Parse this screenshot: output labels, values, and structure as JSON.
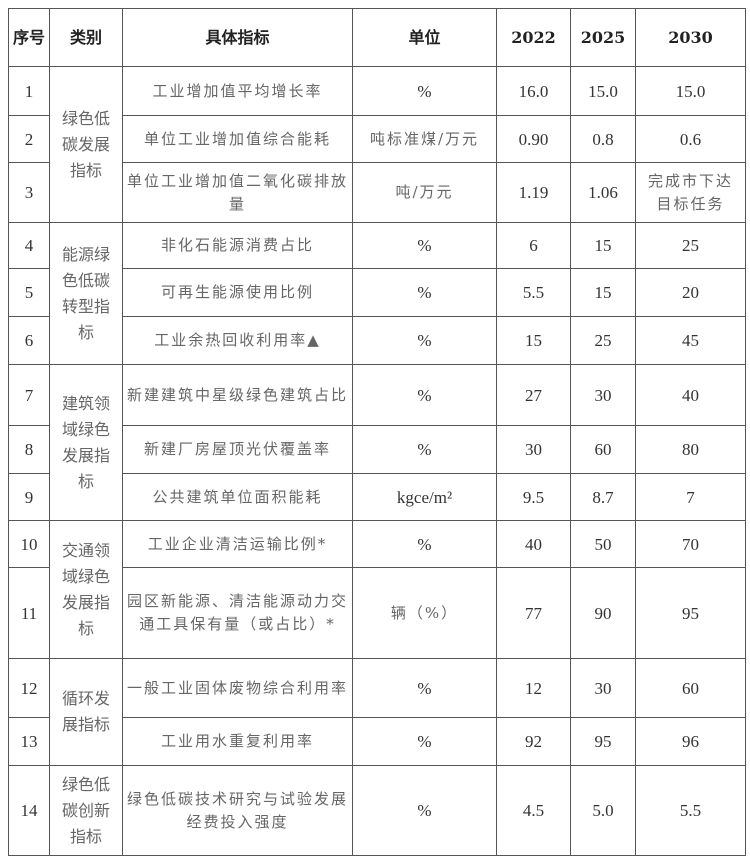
{
  "header": {
    "seq": "序号",
    "category": "类别",
    "indicator": "具体指标",
    "unit": "单位",
    "y2022": "2022",
    "y2025": "2025",
    "y2030": "2030"
  },
  "categories": [
    "绿色低碳发展指标",
    "能源绿色低碳转型指标",
    "建筑领域绿色发展指标",
    "交通领域绿色发展指标",
    "循环发展指标",
    "绿色低碳创新指标"
  ],
  "rows": [
    {
      "seq": "1",
      "indicator": "工业增加值平均增长率",
      "unit": "%",
      "y2022": "16.0",
      "y2025": "15.0",
      "y2030": "15.0"
    },
    {
      "seq": "2",
      "indicator": "单位工业增加值综合能耗",
      "unit": "吨标准煤/万元",
      "y2022": "0.90",
      "y2025": "0.8",
      "y2030": "0.6"
    },
    {
      "seq": "3",
      "indicator": "单位工业增加值二氧化碳排放量",
      "unit": "吨/万元",
      "y2022": "1.19",
      "y2025": "1.06",
      "y2030": "完成市下达目标任务"
    },
    {
      "seq": "4",
      "indicator": "非化石能源消费占比",
      "unit": "%",
      "y2022": "6",
      "y2025": "15",
      "y2030": "25"
    },
    {
      "seq": "5",
      "indicator": "可再生能源使用比例",
      "unit": "%",
      "y2022": "5.5",
      "y2025": "15",
      "y2030": "20"
    },
    {
      "seq": "6",
      "indicator": "工业余热回收利用率▲",
      "unit": "%",
      "y2022": "15",
      "y2025": "25",
      "y2030": "45"
    },
    {
      "seq": "7",
      "indicator": "新建建筑中星级绿色建筑占比",
      "unit": "%",
      "y2022": "27",
      "y2025": "30",
      "y2030": "40"
    },
    {
      "seq": "8",
      "indicator": "新建厂房屋顶光伏覆盖率",
      "unit": "%",
      "y2022": "30",
      "y2025": "60",
      "y2030": "80"
    },
    {
      "seq": "9",
      "indicator": "公共建筑单位面积能耗",
      "unit": "kgce/m²",
      "y2022": "9.5",
      "y2025": "8.7",
      "y2030": "7"
    },
    {
      "seq": "10",
      "indicator": "工业企业清洁运输比例*",
      "unit": "%",
      "y2022": "40",
      "y2025": "50",
      "y2030": "70"
    },
    {
      "seq": "11",
      "indicator": "园区新能源、清洁能源动力交通工具保有量（或占比）*",
      "unit": "辆（%）",
      "y2022": "77",
      "y2025": "90",
      "y2030": "95"
    },
    {
      "seq": "12",
      "indicator": "一般工业固体废物综合利用率",
      "unit": "%",
      "y2022": "12",
      "y2025": "30",
      "y2030": "60"
    },
    {
      "seq": "13",
      "indicator": "工业用水重复利用率",
      "unit": "%",
      "y2022": "92",
      "y2025": "95",
      "y2030": "96"
    },
    {
      "seq": "14",
      "indicator": "绿色低碳技术研究与试验发展经费投入强度",
      "unit": "%",
      "y2022": "4.5",
      "y2025": "5.0",
      "y2030": "5.5"
    }
  ]
}
